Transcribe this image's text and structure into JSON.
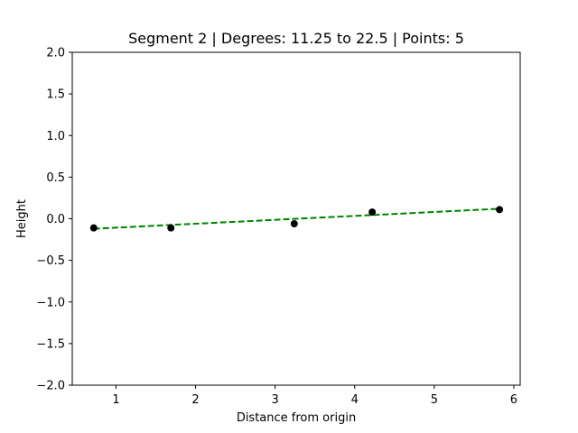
{
  "chart_data": {
    "type": "scatter",
    "title": "Segment 2 | Degrees: 11.25 to 22.5 | Points: 5",
    "xlabel": "Distance from origin",
    "ylabel": "Height",
    "xlim": [
      0.45,
      6.08
    ],
    "ylim": [
      -2.0,
      2.0
    ],
    "xticks": [
      1,
      2,
      3,
      4,
      5,
      6
    ],
    "xtick_labels": [
      "1",
      "2",
      "3",
      "4",
      "5",
      "6"
    ],
    "yticks": [
      2.0,
      1.5,
      1.0,
      0.5,
      0.0,
      -0.5,
      -1.0,
      -1.5,
      -2.0
    ],
    "ytick_labels": [
      "2.0",
      "1.5",
      "1.0",
      "0.5",
      "0.0",
      "−0.5",
      "−1.0",
      "−1.5",
      "−2.0"
    ],
    "grid": false,
    "series": [
      {
        "kind": "scatter",
        "color": "#000000",
        "x": [
          0.72,
          1.69,
          3.24,
          4.22,
          5.82
        ],
        "y": [
          -0.11,
          -0.11,
          -0.06,
          0.08,
          0.11
        ]
      },
      {
        "kind": "fit-line",
        "color": "#008000",
        "style": "dashed",
        "x": [
          0.72,
          5.82
        ],
        "y": [
          -0.12,
          0.12
        ]
      }
    ]
  }
}
